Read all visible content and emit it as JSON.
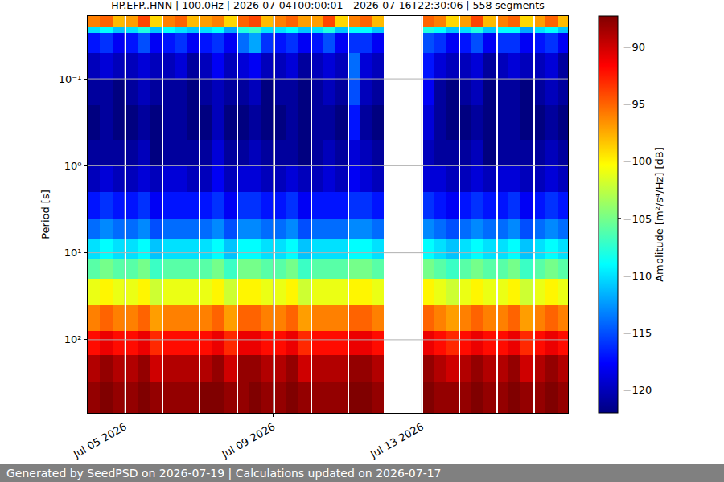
{
  "chart_data": {
    "type": "heatmap",
    "title": "HP.EFP..HNN | 100.0Hz | 2026-07-04T00:00:01 - 2026-07-16T22:30:06 | 558 segments",
    "footer": "Generated by SeedPSD on 2026-07-19 | Calculations updated on 2026-07-17",
    "ylabel": "Period [s]",
    "colorbar_title": "Amplitude [m²/s⁴/Hz] [dB]",
    "log": "y",
    "grid": true,
    "x": [
      "2026-07-04 00:00:01",
      "2026-07-04 08:00",
      "2026-07-04 16:00",
      "2026-07-05 00:00",
      "2026-07-05 01:00",
      "2026-07-05 08:00",
      "2026-07-05 16:00",
      "2026-07-06 00:00",
      "2026-07-06 01:00",
      "2026-07-06 08:00",
      "2026-07-06 16:00",
      "2026-07-07 00:00",
      "2026-07-07 01:00",
      "2026-07-07 08:00",
      "2026-07-07 16:00",
      "2026-07-08 00:00",
      "2026-07-08 01:00",
      "2026-07-08 08:00",
      "2026-07-08 16:00",
      "2026-07-09 00:00",
      "2026-07-09 01:00",
      "2026-07-09 08:00",
      "2026-07-09 16:00",
      "2026-07-10 00:00",
      "2026-07-10 01:00",
      "2026-07-10 08:00",
      "2026-07-10 16:00",
      "2026-07-11 00:00",
      "2026-07-11 01:00",
      "2026-07-11 08:00",
      "2026-07-11 16:00",
      "2026-07-11 23:30",
      "2026-07-13 01:00",
      "2026-07-13 08:00",
      "2026-07-13 16:00",
      "2026-07-14 00:00",
      "2026-07-14 01:00",
      "2026-07-14 08:00",
      "2026-07-14 16:00",
      "2026-07-15 00:00",
      "2026-07-15 01:00",
      "2026-07-15 08:00",
      "2026-07-15 16:00",
      "2026-07-16 00:00",
      "2026-07-16 01:00",
      "2026-07-16 08:00",
      "2026-07-16 16:00",
      "2026-07-16 22:30:06"
    ],
    "y": [
      0.019,
      0.025,
      0.03,
      0.05,
      0.1,
      0.2,
      0.5,
      1,
      2,
      4,
      7,
      12,
      20,
      40,
      80,
      150,
      300,
      694
    ],
    "z": [
      [
        -96,
        -95,
        -98,
        null,
        -97,
        -94,
        -99,
        null,
        -96,
        -95,
        -98,
        null,
        -97,
        -96,
        -99,
        null,
        -95,
        -94,
        -98,
        null,
        -96,
        -95,
        -97,
        null,
        -97,
        -94,
        -99,
        null,
        -96,
        -95,
        -98,
        null,
        -95,
        -96,
        -99,
        null,
        -97,
        -94,
        -98,
        null,
        -96,
        -95,
        -99,
        null,
        -97,
        -95,
        -98
      ],
      [
        -110,
        -109,
        -111,
        null,
        -110,
        -108,
        -111,
        null,
        -109,
        -110,
        -111,
        null,
        -110,
        -109,
        -112,
        null,
        -108,
        -107,
        -110,
        null,
        -110,
        -109,
        -111,
        null,
        -110,
        -108,
        -111,
        null,
        -109,
        -109,
        -111,
        null,
        -108,
        -109,
        -111,
        null,
        -110,
        -108,
        -111,
        null,
        -109,
        -109,
        -112,
        null,
        -110,
        -109,
        -111
      ],
      [
        -117,
        -116,
        -118,
        null,
        -117,
        -115,
        -118,
        null,
        -117,
        -116,
        -118,
        null,
        -117,
        -116,
        -118,
        null,
        -114,
        -112,
        -116,
        null,
        -117,
        -116,
        -118,
        null,
        -117,
        -115,
        -118,
        null,
        -116,
        -116,
        -118,
        null,
        -115,
        -116,
        -118,
        null,
        -117,
        -115,
        -118,
        null,
        -116,
        -116,
        -118,
        null,
        -117,
        -116,
        -118
      ],
      [
        -120,
        -119,
        -120,
        null,
        -120,
        -119,
        -120,
        null,
        -120,
        -119,
        -121,
        null,
        -120,
        -118,
        -120,
        null,
        -119,
        -118,
        -120,
        null,
        -120,
        -119,
        -121,
        null,
        -120,
        -119,
        -120,
        null,
        -114,
        -119,
        -120,
        null,
        -117,
        -119,
        -120,
        null,
        -120,
        -119,
        -121,
        null,
        -120,
        -119,
        -120,
        null,
        -120,
        -119,
        -121
      ],
      [
        -121,
        -121,
        -122,
        null,
        -121,
        -120,
        -121,
        null,
        -121,
        -121,
        -122,
        null,
        -121,
        -120,
        -121,
        null,
        -121,
        -120,
        -122,
        null,
        -121,
        -121,
        -122,
        null,
        -121,
        -120,
        -121,
        null,
        -115,
        -120,
        -121,
        null,
        -118,
        -121,
        -122,
        null,
        -121,
        -120,
        -122,
        null,
        -121,
        -121,
        -122,
        null,
        -121,
        -120,
        -121
      ],
      [
        -122,
        -121,
        -122,
        null,
        -122,
        -121,
        -122,
        null,
        -121,
        -121,
        -122,
        null,
        -122,
        -120,
        -122,
        null,
        -122,
        -121,
        -122,
        null,
        -122,
        -121,
        -122,
        null,
        -121,
        -121,
        -122,
        null,
        -117,
        -121,
        -122,
        null,
        -119,
        -121,
        -122,
        null,
        -122,
        -121,
        -122,
        null,
        -121,
        -121,
        -122,
        null,
        -122,
        -121,
        -122
      ],
      [
        -121,
        -121,
        -121,
        null,
        -121,
        -120,
        -122,
        null,
        -121,
        -121,
        -121,
        null,
        -121,
        -119,
        -121,
        null,
        -121,
        -120,
        -121,
        null,
        -121,
        -121,
        -122,
        null,
        -121,
        -120,
        -121,
        null,
        -119,
        -120,
        -121,
        null,
        -120,
        -121,
        -121,
        null,
        -121,
        -120,
        -122,
        null,
        -121,
        -121,
        -121,
        null,
        -121,
        -120,
        -121
      ],
      [
        -120,
        -119,
        -120,
        null,
        -120,
        -119,
        -120,
        null,
        -119,
        -119,
        -120,
        null,
        -120,
        -118,
        -120,
        null,
        -119,
        -119,
        -120,
        null,
        -120,
        -119,
        -120,
        null,
        -120,
        -119,
        -120,
        null,
        -118,
        -119,
        -120,
        null,
        -119,
        -119,
        -120,
        null,
        -120,
        -119,
        -120,
        null,
        -119,
        -119,
        -120,
        null,
        -120,
        -119,
        -120
      ],
      [
        -117,
        -116,
        -117,
        null,
        -117,
        -116,
        -118,
        null,
        -117,
        -117,
        -117,
        null,
        -117,
        -116,
        -118,
        null,
        -116,
        -116,
        -117,
        null,
        -117,
        -116,
        -118,
        null,
        -117,
        -117,
        -117,
        null,
        -116,
        -116,
        -117,
        null,
        -116,
        -117,
        -118,
        null,
        -117,
        -116,
        -117,
        null,
        -117,
        -116,
        -118,
        null,
        -117,
        -116,
        -117
      ],
      [
        -114,
        -113,
        -114,
        null,
        -114,
        -113,
        -115,
        null,
        -114,
        -114,
        -114,
        null,
        -114,
        -113,
        -115,
        null,
        -113,
        -113,
        -114,
        null,
        -114,
        -113,
        -115,
        null,
        -114,
        -114,
        -114,
        null,
        -113,
        -113,
        -114,
        null,
        -113,
        -114,
        -115,
        null,
        -114,
        -113,
        -114,
        null,
        -114,
        -113,
        -115,
        null,
        -114,
        -113,
        -114
      ],
      [
        -110,
        -109,
        -110,
        null,
        -110,
        -109,
        -111,
        null,
        -110,
        -110,
        -110,
        null,
        -110,
        -109,
        -111,
        null,
        -109,
        -109,
        -110,
        null,
        -110,
        -109,
        -111,
        null,
        -110,
        -110,
        -110,
        null,
        -109,
        -109,
        -110,
        null,
        -109,
        -110,
        -111,
        null,
        -110,
        -109,
        -110,
        null,
        -110,
        -109,
        -111,
        null,
        -110,
        -109,
        -110
      ],
      [
        -106,
        -105,
        -106,
        null,
        -106,
        -105,
        -107,
        null,
        -106,
        -106,
        -106,
        null,
        -106,
        -105,
        -107,
        null,
        -105,
        -105,
        -106,
        null,
        -106,
        -105,
        -107,
        null,
        -106,
        -106,
        -106,
        null,
        -105,
        -105,
        -106,
        null,
        -105,
        -106,
        -107,
        null,
        -106,
        -105,
        -106,
        null,
        -106,
        -105,
        -107,
        null,
        -106,
        -105,
        -106
      ],
      [
        -101,
        -100,
        -101,
        null,
        -101,
        -100,
        -102,
        null,
        -101,
        -101,
        -101,
        null,
        -101,
        -100,
        -102,
        null,
        -100,
        -100,
        -101,
        null,
        -101,
        -100,
        -102,
        null,
        -101,
        -101,
        -101,
        null,
        -100,
        -100,
        -101,
        null,
        -100,
        -101,
        -102,
        null,
        -101,
        -100,
        -101,
        null,
        -101,
        -100,
        -102,
        null,
        -101,
        -100,
        -101
      ],
      [
        -96,
        -95,
        -96,
        null,
        -96,
        -95,
        -97,
        null,
        -96,
        -96,
        -96,
        null,
        -96,
        -95,
        -97,
        null,
        -95,
        -95,
        -96,
        null,
        -96,
        -95,
        -97,
        null,
        -96,
        -96,
        -96,
        null,
        -95,
        -95,
        -96,
        null,
        -95,
        -96,
        -97,
        null,
        -96,
        -95,
        -96,
        null,
        -96,
        -95,
        -97,
        null,
        -96,
        -95,
        -96
      ],
      [
        -92,
        -91,
        -92,
        null,
        -92,
        -91,
        -93,
        null,
        -92,
        -92,
        -92,
        null,
        -92,
        -91,
        -93,
        null,
        -91,
        -91,
        -92,
        null,
        -92,
        -91,
        -93,
        null,
        -92,
        -92,
        -92,
        null,
        -91,
        -91,
        -92,
        null,
        -91,
        -92,
        -93,
        null,
        -92,
        -91,
        -92,
        null,
        -92,
        -91,
        -93,
        null,
        -92,
        -91,
        -92
      ],
      [
        -89,
        -88,
        -89,
        null,
        -89,
        -88,
        -90,
        null,
        -89,
        -89,
        -89,
        null,
        -89,
        -88,
        -90,
        null,
        -88,
        -88,
        -89,
        null,
        -89,
        -88,
        -90,
        null,
        -89,
        -89,
        -89,
        null,
        -88,
        -88,
        -89,
        null,
        -88,
        -89,
        -90,
        null,
        -89,
        -88,
        -89,
        null,
        -89,
        -88,
        -90,
        null,
        -89,
        -88,
        -89
      ],
      [
        -88,
        -87,
        -88,
        null,
        -88,
        -87,
        -88,
        null,
        -88,
        -88,
        -88,
        null,
        -87,
        -87,
        -88,
        null,
        -88,
        -87,
        -88,
        null,
        -88,
        -87,
        -88,
        null,
        -88,
        -88,
        -88,
        null,
        -87,
        -87,
        -88,
        null,
        -87,
        -88,
        -88,
        null,
        -88,
        -87,
        -88,
        null,
        -88,
        -87,
        -88,
        null,
        -88,
        -87,
        -88
      ]
    ],
    "xlim": [
      "2026-07-04 00:00:01",
      "2026-07-16 22:30:06"
    ],
    "xticks": [
      {
        "value": "2026-07-05",
        "label": "Jul 05 2026"
      },
      {
        "value": "2026-07-09",
        "label": "Jul 09 2026"
      },
      {
        "value": "2026-07-13",
        "label": "Jul 13 2026"
      }
    ],
    "ylim": [
      694,
      0.019
    ],
    "yticks": [
      {
        "value": 0.1,
        "label": "10⁻¹"
      },
      {
        "value": 1,
        "label": "10⁰"
      },
      {
        "value": 10,
        "label": "10¹"
      },
      {
        "value": 100,
        "label": "10²"
      }
    ],
    "zlim": [
      -122,
      -87.3
    ],
    "zticks": [
      -120,
      -115,
      -110,
      -105,
      -100,
      -95,
      -90
    ]
  }
}
